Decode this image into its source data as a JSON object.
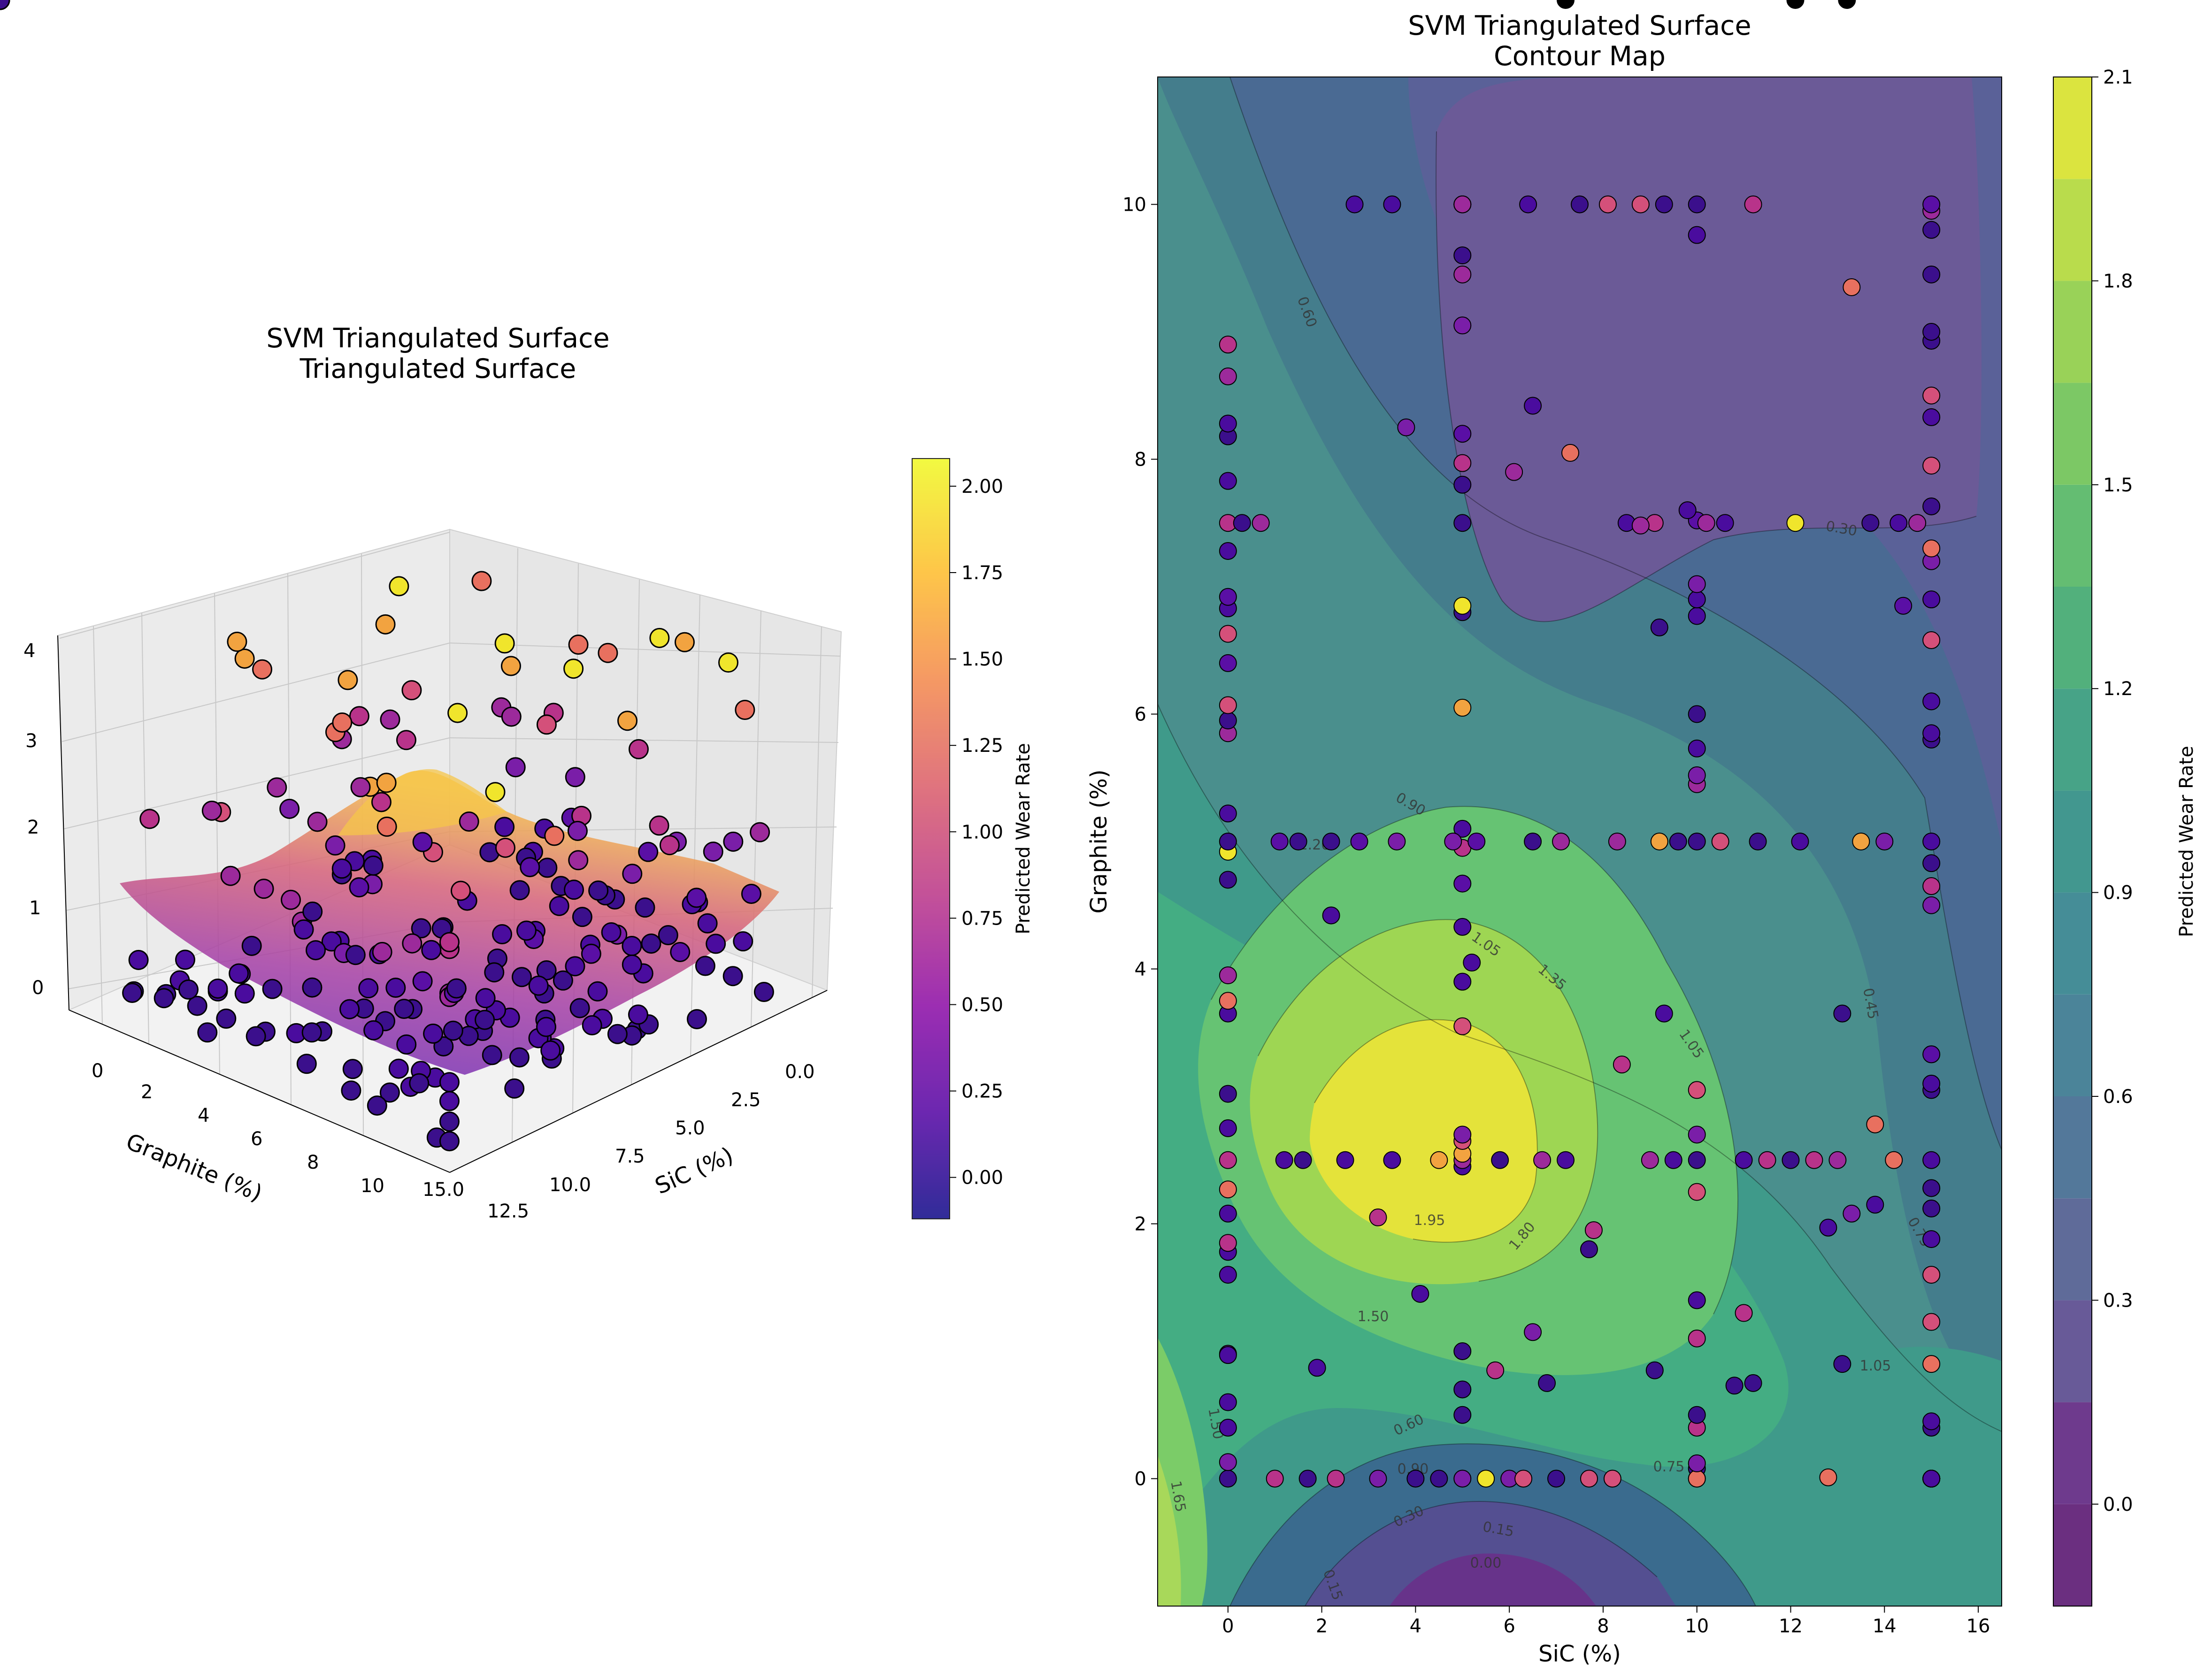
{
  "figure": {
    "left_panel": {
      "title_line1": "SVM Triangulated Surface",
      "title_line2": "Triangulated Surface",
      "xlabel": "Graphite (%)",
      "ylabel": "SiC (%)",
      "graphite_ticks": [
        "0",
        "2",
        "4",
        "6",
        "8",
        "10"
      ],
      "sic_ticks": [
        "0.0",
        "2.5",
        "5.0",
        "7.5",
        "10.0",
        "12.5",
        "15.0"
      ],
      "z_ticks": [
        "0",
        "1",
        "2",
        "3",
        "4"
      ],
      "colorbar_label": "Predicted Wear Rate",
      "colorbar_ticks": [
        "0.00",
        "0.25",
        "0.50",
        "0.75",
        "1.00",
        "1.25",
        "1.50",
        "1.75",
        "2.00"
      ],
      "colormap": "plasma"
    },
    "right_panel": {
      "title_line1": "SVM Triangulated Surface",
      "title_line2": "Contour Map",
      "xlabel": "SiC (%)",
      "ylabel": "Graphite (%)",
      "x_ticks": [
        "0",
        "2",
        "4",
        "6",
        "8",
        "10",
        "12",
        "14",
        "16"
      ],
      "y_ticks": [
        "0",
        "2",
        "4",
        "6",
        "8",
        "10"
      ],
      "colorbar_label": "Predicted Wear Rate",
      "colorbar_ticks": [
        "0.0",
        "0.3",
        "0.6",
        "0.9",
        "1.2",
        "1.5",
        "1.8",
        "2.1"
      ],
      "contour_labels": [
        "0.60",
        "0.30",
        "0.90",
        "1.20",
        "1.05",
        "1.35",
        "1.05",
        "0.45",
        "1.95",
        "1.80",
        "1.50",
        "1.50",
        "1.65",
        "0.90",
        "0.60",
        "0.30",
        "0.15",
        "0.00",
        "1.05",
        "0.75",
        "0.75",
        "0.15"
      ],
      "colormap": "viridis"
    }
  },
  "chart_data": [
    {
      "type": "scatter",
      "subtype": "3d-surface-with-points",
      "title": "SVM Triangulated Surface\nTriangulated Surface",
      "xlabel": "Graphite (%)",
      "ylabel": "SiC (%)",
      "zlabel": "",
      "xlim": [
        -1,
        11
      ],
      "ylim": [
        -1.5,
        16.5
      ],
      "zlim": [
        -0.2,
        4.2
      ],
      "surface_peak": {
        "graphite": 2.5,
        "sic": 4.5,
        "wear_rate": 2.05
      },
      "colorbar": {
        "label": "Predicted Wear Rate",
        "range": [
          -0.12,
          2.08
        ],
        "cmap": "plasma"
      },
      "grid": true
    },
    {
      "type": "heatmap",
      "subtype": "filled-contour",
      "title": "SVM Triangulated Surface\nContour Map",
      "xlabel": "SiC (%)",
      "ylabel": "Graphite (%)",
      "xlim": [
        -1.5,
        16.5
      ],
      "ylim": [
        -1.0,
        11.0
      ],
      "levels": [
        -0.15,
        0.0,
        0.15,
        0.3,
        0.45,
        0.6,
        0.75,
        0.9,
        1.05,
        1.2,
        1.35,
        1.5,
        1.65,
        1.8,
        1.95,
        2.1
      ],
      "colorbar": {
        "label": "Predicted Wear Rate",
        "range": [
          -0.15,
          2.1
        ],
        "cmap": "viridis"
      },
      "surface_peak": {
        "sic": 4.3,
        "graphite": 2.6,
        "value": 2.05
      },
      "surface_low": {
        "sic": 9.8,
        "graphite": 8.9,
        "value": 0.22
      },
      "points": {
        "x": [
          0,
          0,
          0,
          0,
          0,
          0,
          0,
          0,
          0,
          0,
          0,
          0,
          0,
          0,
          0,
          0,
          0,
          0,
          0,
          0,
          0,
          0,
          0,
          0,
          0,
          0,
          0,
          0,
          0,
          0,
          0,
          0,
          0,
          0,
          0,
          5,
          5,
          5,
          5,
          5,
          5,
          5,
          5,
          5,
          5,
          5,
          5,
          5,
          5,
          5,
          5,
          5,
          5,
          5,
          5,
          5,
          5,
          5,
          5,
          5,
          5,
          5,
          5,
          10,
          10,
          10,
          10,
          10,
          10,
          10,
          10,
          10,
          10,
          10,
          10,
          10,
          10,
          10,
          10,
          10,
          10,
          10,
          10,
          10,
          10,
          10,
          15,
          15,
          15,
          15,
          15,
          15,
          15,
          15,
          15,
          15,
          15,
          15,
          15,
          15,
          15,
          15,
          15,
          15,
          15,
          15,
          15,
          15,
          15,
          15,
          15,
          15,
          15,
          15,
          15,
          15,
          15,
          15,
          15,
          15,
          15,
          15,
          15,
          15,
          15,
          15,
          15,
          1,
          1.7,
          2.3,
          3.2,
          4,
          4.5,
          5.5,
          6,
          6.3,
          7,
          7.7,
          8.2,
          9,
          9.5,
          11,
          11.5,
          12,
          12.5,
          13,
          14.2,
          1.2,
          1.6,
          2.5,
          3.5,
          4.5,
          5.8,
          6.7,
          7.2,
          8.3,
          9.2,
          9.6,
          10.5,
          11.3,
          12.2,
          13.5,
          14,
          1.1,
          1.5,
          2.2,
          2.8,
          3.6,
          4.8,
          5.3,
          6.5,
          7.1,
          8.5,
          9.1,
          10.2,
          10.6,
          12.1,
          13.7,
          14.3,
          14.7,
          0.3,
          0.7,
          2.7,
          3.5,
          6.4,
          7.5,
          8.1,
          8.8,
          9.3,
          11.2,
          3.8,
          6.1,
          7.3,
          8.8,
          9.8,
          12.8,
          13.3,
          14.4,
          6.5,
          9.2,
          11.2,
          12.8,
          13.1,
          1.9,
          3.2,
          5.7,
          6.8,
          7.8,
          8.4,
          9.3,
          11,
          13.3,
          13.8,
          2.2,
          4.1,
          6.5,
          7.7,
          9.1,
          10.8,
          13.1,
          13.8,
          5.2,
          7.2,
          12.1,
          13.2
        ],
        "y": [
          0,
          0.13,
          0.4,
          0.6,
          0.98,
          0.97,
          1.6,
          1.78,
          1.85,
          2.08,
          2.27,
          2.5,
          2.75,
          3.02,
          3.65,
          3.75,
          3.95,
          4.7,
          4.92,
          5.0,
          5.22,
          5.85,
          5.95,
          6.07,
          6.4,
          6.63,
          6.83,
          6.92,
          7.28,
          7.5,
          7.83,
          8.18,
          8.28,
          8.65,
          8.9,
          0,
          0.5,
          0.7,
          1.0,
          2.45,
          2.5,
          2.55,
          2.65,
          2.7,
          3.55,
          3.9,
          4.33,
          4.67,
          4.95,
          5.1,
          6.05,
          6.8,
          6.85,
          7.5,
          7.8,
          7.97,
          8.2,
          9.05,
          9.45,
          9.6,
          10.0,
          10.0,
          10.0,
          0,
          0.08,
          0.4,
          0.5,
          1.1,
          1.4,
          2.25,
          2.5,
          2.7,
          3.05,
          5.0,
          5.45,
          5.52,
          5.73,
          6.0,
          6.77,
          6.9,
          7.02,
          7.52,
          9.76,
          10.0,
          0,
          0.12,
          0.4,
          0.45,
          0.9,
          1.23,
          1.6,
          1.88,
          2.12,
          2.28,
          2.5,
          3.05,
          3.1,
          3.33,
          4.5,
          4.65,
          4.83,
          5.0,
          5.8,
          5.85,
          6.1,
          6.58,
          6.9,
          7.2,
          7.3,
          7.63,
          7.95,
          8.33,
          8.5,
          8.93,
          9.0,
          9.45,
          9.8,
          9.95,
          10,
          0,
          0,
          0,
          0,
          0,
          0,
          0,
          0,
          0,
          0,
          0,
          0,
          0,
          0,
          0,
          0,
          0,
          0,
          0,
          0,
          2.5,
          2.5,
          2.5,
          2.5,
          2.5,
          2.5,
          2.5,
          2.5,
          2.5,
          2.5,
          2.5,
          2.5,
          2.5,
          2.5,
          2.5,
          2.5,
          5.0,
          5.0,
          5.0,
          5.0,
          5.0,
          5.0,
          5.0,
          5.0,
          5.0,
          5.0,
          5.0,
          5.0,
          5.0,
          5.0,
          5.0,
          5.0,
          5.0,
          7.5,
          7.5,
          7.5,
          7.5,
          7.5,
          7.5,
          7.5,
          7.5,
          7.5,
          7.5,
          10,
          10,
          10,
          10,
          10,
          10,
          10,
          10,
          8.25,
          7.9,
          8.05,
          7.48,
          7.6,
          0.01,
          9.35,
          6.85,
          1.15,
          6.68,
          0.75,
          1.97,
          0.9,
          0.87,
          2.05,
          0.85,
          0.75,
          1.95,
          3.25,
          3.65,
          1.3,
          2.08,
          2.78,
          4.42,
          1.45,
          8.42,
          1.8,
          0.85,
          0.73,
          3.65,
          2.15,
          4.05
        ],
        "note": "approximate scatter of observed samples; point colors follow plasma colormap of observed wear rate"
      },
      "grid": false
    }
  ]
}
